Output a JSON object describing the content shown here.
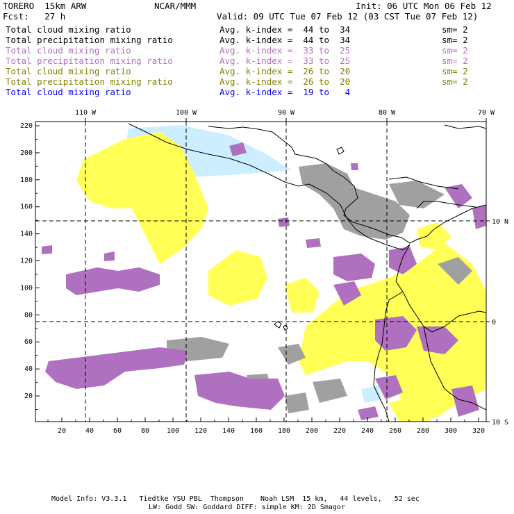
{
  "header": {
    "model": "TORERO  15km ARW",
    "org": "NCAR/MMM",
    "init": "Init: 06 UTC Mon 06 Feb 12",
    "fcst": "Fcst:   27 h",
    "valid": "Valid: 09 UTC Tue 07 Feb 12 (03 CST Tue 07 Feb 12)"
  },
  "legend": [
    {
      "field": "Total cloud mixing ratio",
      "range": "Avg. k-index =  44 to  34",
      "sm": "sm= 2",
      "color": "#000000"
    },
    {
      "field": "Total precipitation mixing ratio",
      "range": "Avg. k-index =  44 to  34",
      "sm": "sm= 2",
      "color": "#000000"
    },
    {
      "field": "Total cloud mixing ratio",
      "range": "Avg. k-index =  33 to  25",
      "sm": "sm= 2",
      "color": "#b070c0"
    },
    {
      "field": "Total precipitation mixing ratio",
      "range": "Avg. k-index =  33 to  25",
      "sm": "sm= 2",
      "color": "#b070c0"
    },
    {
      "field": "Total cloud mixing ratio",
      "range": "Avg. k-index =  26 to  20",
      "sm": "sm= 2",
      "color": "#808000"
    },
    {
      "field": "Total precipitation mixing ratio",
      "range": "Avg. k-index =  26 to  20",
      "sm": "sm= 2",
      "color": "#808000"
    },
    {
      "field": "Total cloud mixing ratio",
      "range": "Avg. k-index =  19 to   4",
      "sm": "",
      "color": "#0000ff"
    }
  ],
  "map": {
    "colors": {
      "purple": "#b070c0",
      "yellow": "#ffff55",
      "gray": "#a0a0a0",
      "cyan": "#cceeff",
      "coast": "#000000"
    },
    "lon_labels": [
      "110 W",
      "100 W",
      "90 W",
      "80 W",
      "70 W"
    ],
    "lat_labels": [
      "10 N",
      "0",
      "10 S"
    ],
    "x_ticks": [
      "20",
      "40",
      "60",
      "80",
      "100",
      "120",
      "140",
      "160",
      "180",
      "200",
      "220",
      "240",
      "260",
      "280",
      "300",
      "320"
    ],
    "y_ticks": [
      "20",
      "40",
      "60",
      "80",
      "100",
      "120",
      "140",
      "160",
      "180",
      "200",
      "220"
    ]
  },
  "footer": {
    "line1": "Model Info: V3.3.1   Tiedtke YSU PBL  Thompson    Noah LSM  15 km,   44 levels,   52 sec",
    "line2": "LW: Godd SW: Goddard DIFF: simple KM: 2D Smagor"
  }
}
